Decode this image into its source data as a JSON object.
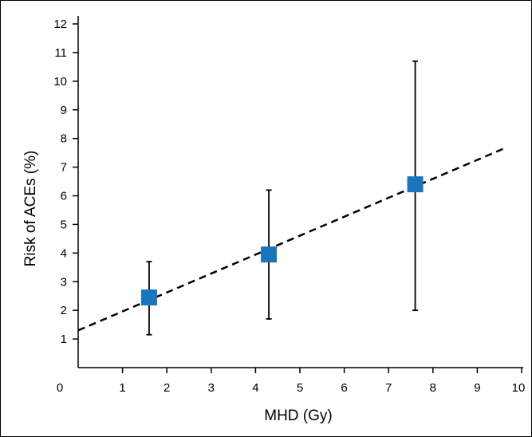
{
  "chart_data": {
    "type": "scatter",
    "xlabel": "MHD (Gy)",
    "ylabel": "Risk of ACEs (%)",
    "xlim": [
      0,
      10
    ],
    "ylim": [
      0,
      12
    ],
    "x_ticks": [
      0,
      1,
      2,
      3,
      4,
      5,
      6,
      7,
      8,
      9,
      10
    ],
    "y_ticks": [
      1,
      2,
      3,
      4,
      5,
      6,
      7,
      8,
      9,
      10,
      11,
      12
    ],
    "grid": false,
    "points": [
      {
        "x": 1.6,
        "y": 2.45,
        "y_low": 1.15,
        "y_high": 3.7
      },
      {
        "x": 4.3,
        "y": 3.95,
        "y_low": 1.7,
        "y_high": 6.2
      },
      {
        "x": 7.6,
        "y": 6.4,
        "y_low": 2.0,
        "y_high": 10.7
      }
    ],
    "trend_line": {
      "style": "dashed",
      "x": [
        0,
        9.6
      ],
      "y": [
        1.3,
        7.65
      ]
    },
    "marker_color": "#1a75bc",
    "marker_shape": "square"
  }
}
